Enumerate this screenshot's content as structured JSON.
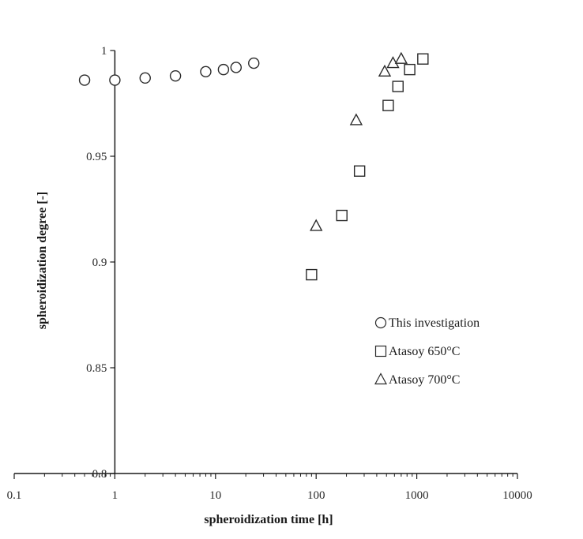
{
  "chart_data": {
    "type": "scatter",
    "x_scale": "log",
    "xlim": [
      0.1,
      10000
    ],
    "ylim": [
      0.8,
      1.0
    ],
    "x_ticks": [
      0.1,
      1,
      10,
      100,
      1000,
      10000
    ],
    "x_tick_labels": [
      "0.1",
      "1",
      "10",
      "100",
      "1000",
      "10000"
    ],
    "y_ticks": [
      0.8,
      0.85,
      0.9,
      0.95,
      1.0
    ],
    "y_tick_labels": [
      "0.8",
      "0.85",
      "0.9",
      "0.95",
      "1"
    ],
    "xlabel": "spheroidization time [h]",
    "ylabel": "spheroidization degree [-]",
    "title": "",
    "grid": false,
    "y_axis_crosses_x_at": 1,
    "legend_position": "bottom-right",
    "series": [
      {
        "name": "This investigation",
        "marker": "circle",
        "x": [
          0.5,
          1,
          2,
          4,
          8,
          12,
          16,
          24
        ],
        "y": [
          0.986,
          0.986,
          0.987,
          0.988,
          0.99,
          0.991,
          0.992,
          0.994
        ]
      },
      {
        "name": "Atasoy 650°C",
        "marker": "square",
        "x": [
          90,
          180,
          270,
          520,
          650,
          850,
          1150
        ],
        "y": [
          0.894,
          0.922,
          0.943,
          0.974,
          0.983,
          0.991,
          0.996
        ]
      },
      {
        "name": "Atasoy 700°C",
        "marker": "triangle",
        "x": [
          100,
          250,
          480,
          580,
          700
        ],
        "y": [
          0.917,
          0.967,
          0.99,
          0.994,
          0.996
        ]
      }
    ],
    "colors": {
      "marker_stroke": "#2a2a2a",
      "axis": "#1a1a1a"
    }
  }
}
